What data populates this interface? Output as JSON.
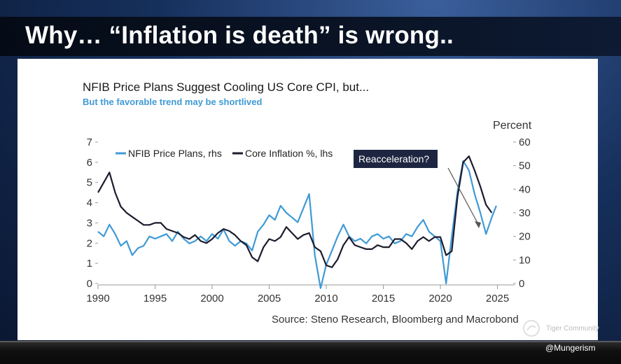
{
  "slide": {
    "title": "Why… “Inflation is death” is wrong..",
    "watermark": "Tiger Community",
    "handle": "@Mungerism"
  },
  "chart_data": {
    "type": "line",
    "title": "NFIB Price Plans Suggest Cooling US Core CPI, but...",
    "subtitle": "But the favorable trend may be shortlived",
    "source": "Source: Steno Research, Bloomberg and Macrobond",
    "annotation": "Reacceleration?",
    "right_axis_unit": "Percent",
    "x_ticks": [
      1990,
      1995,
      2000,
      2005,
      2010,
      2015,
      2020,
      2025
    ],
    "xlim": [
      1990,
      2026.5
    ],
    "left_axis": {
      "ylim": [
        0,
        7
      ],
      "ticks": [
        0,
        1,
        2,
        3,
        4,
        5,
        6,
        7
      ]
    },
    "right_axis": {
      "ylim": [
        0,
        60
      ],
      "ticks": [
        0,
        10,
        20,
        30,
        40,
        50,
        60
      ]
    },
    "series": [
      {
        "name": "NFIB Price Plans, rhs",
        "axis": "right",
        "color": "#3f9ad6",
        "points": [
          [
            1990.0,
            22
          ],
          [
            1990.5,
            20
          ],
          [
            1991.0,
            25
          ],
          [
            1991.5,
            21
          ],
          [
            1992.0,
            16
          ],
          [
            1992.5,
            18
          ],
          [
            1993.0,
            12
          ],
          [
            1993.5,
            15
          ],
          [
            1994.0,
            16
          ],
          [
            1994.5,
            20
          ],
          [
            1995.0,
            19
          ],
          [
            1995.5,
            20
          ],
          [
            1996.0,
            21
          ],
          [
            1996.5,
            18
          ],
          [
            1997.0,
            22
          ],
          [
            1997.5,
            19
          ],
          [
            1998.0,
            17
          ],
          [
            1998.5,
            18
          ],
          [
            1999.0,
            20
          ],
          [
            1999.5,
            18
          ],
          [
            2000.0,
            21
          ],
          [
            2000.5,
            19
          ],
          [
            2001.0,
            23
          ],
          [
            2001.5,
            18
          ],
          [
            2002.0,
            16
          ],
          [
            2002.5,
            18
          ],
          [
            2003.0,
            17
          ],
          [
            2003.5,
            14
          ],
          [
            2004.0,
            22
          ],
          [
            2004.5,
            25
          ],
          [
            2005.0,
            29
          ],
          [
            2005.5,
            27
          ],
          [
            2006.0,
            33
          ],
          [
            2006.5,
            30
          ],
          [
            2007.0,
            28
          ],
          [
            2007.5,
            26
          ],
          [
            2008.0,
            32
          ],
          [
            2008.5,
            38
          ],
          [
            2009.0,
            12
          ],
          [
            2009.5,
            -2
          ],
          [
            2010.0,
            8
          ],
          [
            2010.5,
            14
          ],
          [
            2011.0,
            20
          ],
          [
            2011.5,
            25
          ],
          [
            2012.0,
            20
          ],
          [
            2012.5,
            18
          ],
          [
            2013.0,
            19
          ],
          [
            2013.5,
            17
          ],
          [
            2014.0,
            20
          ],
          [
            2014.5,
            21
          ],
          [
            2015.0,
            19
          ],
          [
            2015.5,
            20
          ],
          [
            2016.0,
            17
          ],
          [
            2016.5,
            18
          ],
          [
            2017.0,
            21
          ],
          [
            2017.5,
            20
          ],
          [
            2018.0,
            24
          ],
          [
            2018.5,
            27
          ],
          [
            2019.0,
            22
          ],
          [
            2019.5,
            20
          ],
          [
            2020.0,
            18
          ],
          [
            2020.5,
            0
          ],
          [
            2021.0,
            20
          ],
          [
            2021.5,
            39
          ],
          [
            2022.0,
            52
          ],
          [
            2022.5,
            48
          ],
          [
            2023.0,
            38
          ],
          [
            2023.5,
            30
          ],
          [
            2024.0,
            21
          ],
          [
            2024.5,
            28
          ],
          [
            2024.9,
            33
          ]
        ]
      },
      {
        "name": "Core Inflation %, lhs",
        "axis": "left",
        "color": "#1c1c2e",
        "points": [
          [
            1990.0,
            4.5
          ],
          [
            1990.5,
            5.0
          ],
          [
            1991.0,
            5.5
          ],
          [
            1991.5,
            4.5
          ],
          [
            1992.0,
            3.8
          ],
          [
            1992.5,
            3.5
          ],
          [
            1993.0,
            3.3
          ],
          [
            1993.5,
            3.1
          ],
          [
            1994.0,
            2.9
          ],
          [
            1994.5,
            2.9
          ],
          [
            1995.0,
            3.0
          ],
          [
            1995.5,
            3.0
          ],
          [
            1996.0,
            2.7
          ],
          [
            1996.5,
            2.6
          ],
          [
            1997.0,
            2.5
          ],
          [
            1997.5,
            2.3
          ],
          [
            1998.0,
            2.2
          ],
          [
            1998.5,
            2.4
          ],
          [
            1999.0,
            2.1
          ],
          [
            1999.5,
            2.0
          ],
          [
            2000.0,
            2.2
          ],
          [
            2000.5,
            2.5
          ],
          [
            2001.0,
            2.7
          ],
          [
            2001.5,
            2.6
          ],
          [
            2002.0,
            2.4
          ],
          [
            2002.5,
            2.1
          ],
          [
            2003.0,
            1.9
          ],
          [
            2003.5,
            1.3
          ],
          [
            2004.0,
            1.1
          ],
          [
            2004.5,
            1.8
          ],
          [
            2005.0,
            2.2
          ],
          [
            2005.5,
            2.1
          ],
          [
            2006.0,
            2.3
          ],
          [
            2006.5,
            2.8
          ],
          [
            2007.0,
            2.5
          ],
          [
            2007.5,
            2.2
          ],
          [
            2008.0,
            2.4
          ],
          [
            2008.5,
            2.5
          ],
          [
            2009.0,
            1.8
          ],
          [
            2009.5,
            1.6
          ],
          [
            2010.0,
            0.9
          ],
          [
            2010.5,
            0.8
          ],
          [
            2011.0,
            1.2
          ],
          [
            2011.5,
            1.9
          ],
          [
            2012.0,
            2.3
          ],
          [
            2012.5,
            1.9
          ],
          [
            2013.0,
            1.8
          ],
          [
            2013.5,
            1.7
          ],
          [
            2014.0,
            1.7
          ],
          [
            2014.5,
            1.9
          ],
          [
            2015.0,
            1.8
          ],
          [
            2015.5,
            1.8
          ],
          [
            2016.0,
            2.2
          ],
          [
            2016.5,
            2.2
          ],
          [
            2017.0,
            2.0
          ],
          [
            2017.5,
            1.7
          ],
          [
            2018.0,
            2.1
          ],
          [
            2018.5,
            2.3
          ],
          [
            2019.0,
            2.1
          ],
          [
            2019.5,
            2.3
          ],
          [
            2020.0,
            2.3
          ],
          [
            2020.5,
            1.4
          ],
          [
            2021.0,
            1.6
          ],
          [
            2021.5,
            4.3
          ],
          [
            2022.0,
            6.0
          ],
          [
            2022.5,
            6.3
          ],
          [
            2023.0,
            5.6
          ],
          [
            2023.5,
            4.8
          ],
          [
            2024.0,
            3.9
          ],
          [
            2024.5,
            3.5
          ]
        ]
      }
    ]
  }
}
